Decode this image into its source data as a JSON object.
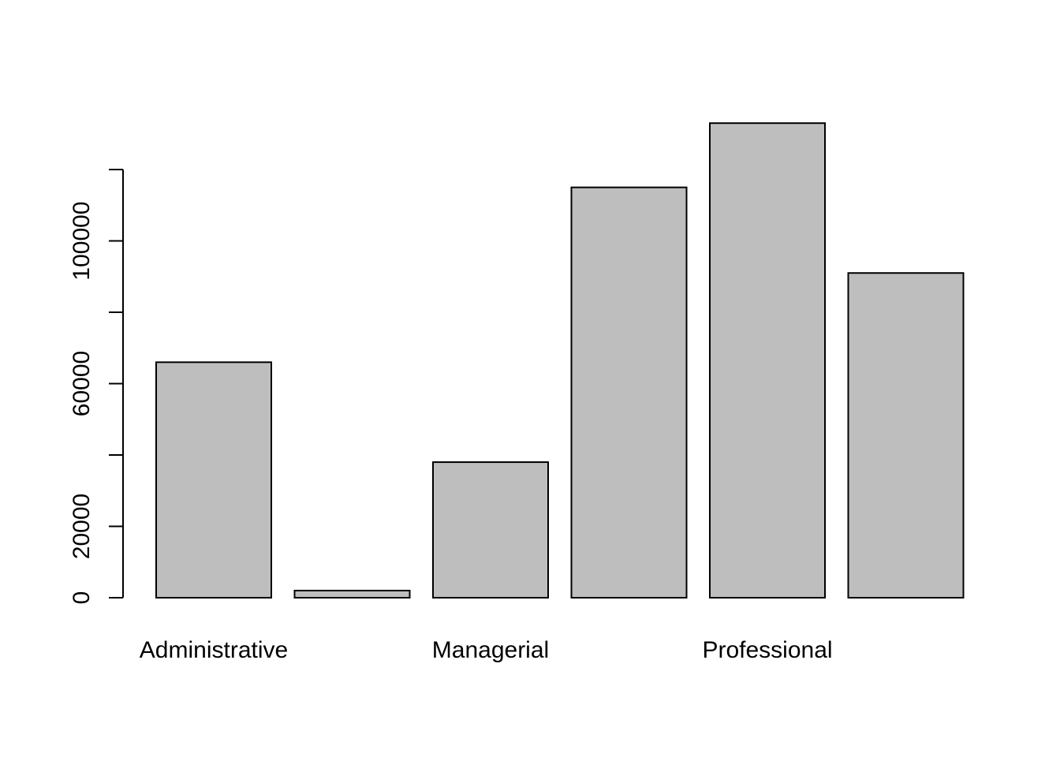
{
  "chart_data": {
    "type": "bar",
    "categories": [
      "Administrative",
      "",
      "Managerial",
      "",
      "Professional",
      ""
    ],
    "values": [
      66000,
      2000,
      38000,
      115000,
      133000,
      91000
    ],
    "ylim": [
      0,
      133000
    ],
    "yticks": [
      0,
      20000,
      40000,
      60000,
      80000,
      100000,
      120000
    ],
    "ytick_labels": [
      "0",
      "20000",
      "",
      "60000",
      "",
      "100000",
      ""
    ],
    "grid": false,
    "bar_fill": "#bebebe",
    "bar_stroke": "#000000"
  }
}
